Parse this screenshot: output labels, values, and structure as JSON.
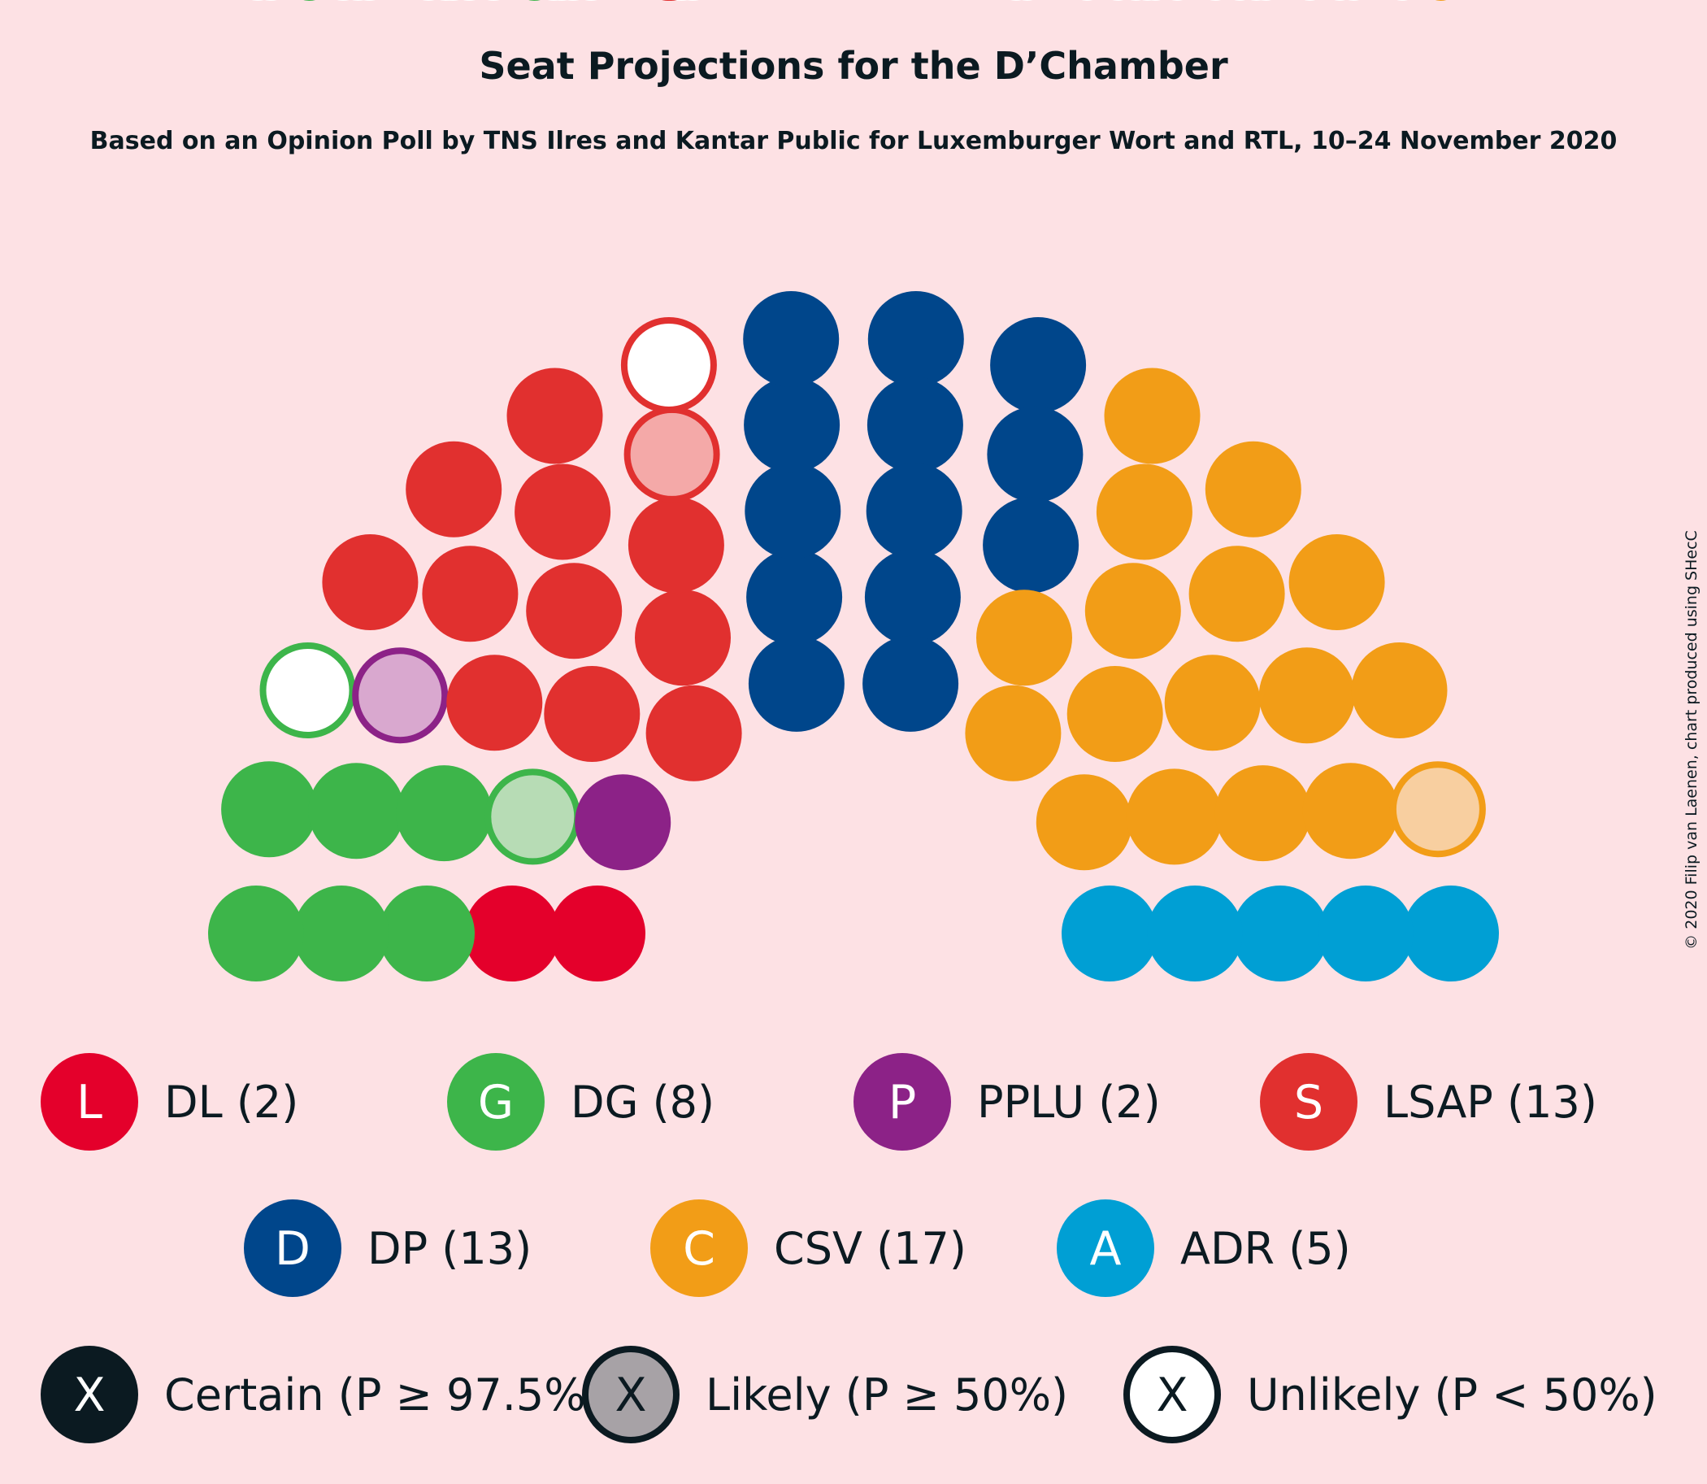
{
  "title": "Seat Projections for the D’Chamber",
  "subtitle": "Based on an Opinion Poll by TNS Ilres and Kantar Public for Luxemburger Wort and RTL, 10–24 November 2020",
  "credit": "© 2020 Filip van Laenen, chart produced using SHecC",
  "chart_data": {
    "type": "parliament",
    "total_seats": 60,
    "parties": [
      {
        "abbr": "L",
        "label": "DL (2)",
        "name": "DL",
        "seats": 2,
        "certain": 2,
        "likely": 0,
        "unlikely": 0,
        "color": "#e4002b",
        "light": "#f49aab"
      },
      {
        "abbr": "G",
        "label": "DG (8)",
        "name": "DG",
        "seats": 8,
        "certain": 6,
        "likely": 1,
        "unlikely": 1,
        "color": "#3db54a",
        "light": "#b7dcb5"
      },
      {
        "abbr": "P",
        "label": "PPLU (2)",
        "name": "PPLU",
        "seats": 2,
        "certain": 1,
        "likely": 1,
        "unlikely": 0,
        "color": "#8c2287",
        "light": "#d9a8cf"
      },
      {
        "abbr": "S",
        "label": "LSAP (13)",
        "name": "LSAP",
        "seats": 13,
        "certain": 11,
        "likely": 1,
        "unlikely": 1,
        "color": "#e1302f",
        "light": "#f4a9a8"
      },
      {
        "abbr": "D",
        "label": "DP (13)",
        "name": "DP",
        "seats": 13,
        "certain": 13,
        "likely": 0,
        "unlikely": 0,
        "color": "#00468b",
        "light": "#9bb3cf"
      },
      {
        "abbr": "C",
        "label": "CSV (17)",
        "name": "CSV",
        "seats": 17,
        "certain": 16,
        "likely": 1,
        "unlikely": 0,
        "color": "#f29d17",
        "light": "#f8cfa0"
      },
      {
        "abbr": "A",
        "label": "ADR (5)",
        "name": "ADR",
        "seats": 5,
        "certain": 5,
        "likely": 0,
        "unlikely": 0,
        "color": "#009fd4",
        "light": "#99d4ea"
      }
    ],
    "certainty_legend": [
      {
        "symbol": "X",
        "label": "Certain (P ≥ 97.5%)",
        "style": "certain"
      },
      {
        "symbol": "X",
        "label": "Likely (P ≥ 50%)",
        "style": "likely"
      },
      {
        "symbol": "X",
        "label": "Unlikely (P < 50%)",
        "style": "unlikely"
      }
    ]
  }
}
